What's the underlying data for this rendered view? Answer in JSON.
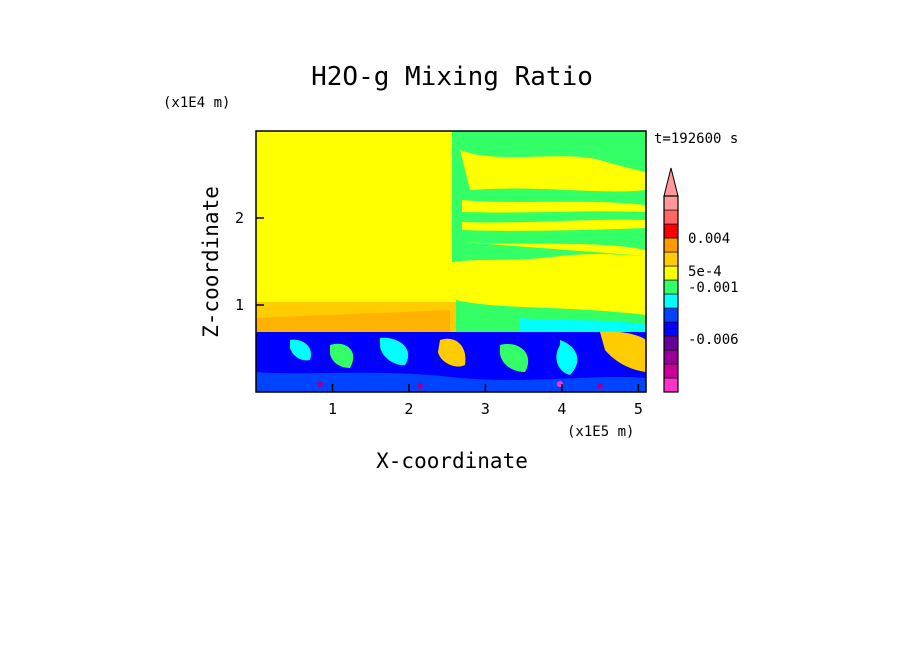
{
  "chart_data": {
    "type": "heatmap",
    "title": "H2O-g Mixing Ratio",
    "xlabel": "X-coordinate",
    "ylabel": "Z-coordinate",
    "x_scale_label": "(x1E5 m)",
    "y_scale_label": "(x1E4 m)",
    "time_label": "t=192600 s",
    "xlim": [
      0,
      5.1
    ],
    "ylim": [
      0,
      3.0
    ],
    "x_ticks": [
      "1",
      "2",
      "3",
      "4",
      "5"
    ],
    "y_ticks": [
      "1",
      "2"
    ],
    "colorbar": {
      "tick_labels": [
        "0.004",
        "5e-4",
        "-0.001",
        "-0.006"
      ],
      "colors": [
        "#ff33cc",
        "#cc0099",
        "#990099",
        "#660099",
        "#0000ff",
        "#0044ff",
        "#00ffff",
        "#33ff66",
        "#ffff00",
        "#ffcc00",
        "#ff9900",
        "#ff0000",
        "#ff6666",
        "#ff9999"
      ]
    },
    "regions": [
      {
        "name": "upper-left moist layer",
        "color": "#ffff00"
      },
      {
        "name": "upper-right mixed layer",
        "color": "#33ff66"
      },
      {
        "name": "lower turbulent layer",
        "color": "#0000ff"
      }
    ]
  }
}
